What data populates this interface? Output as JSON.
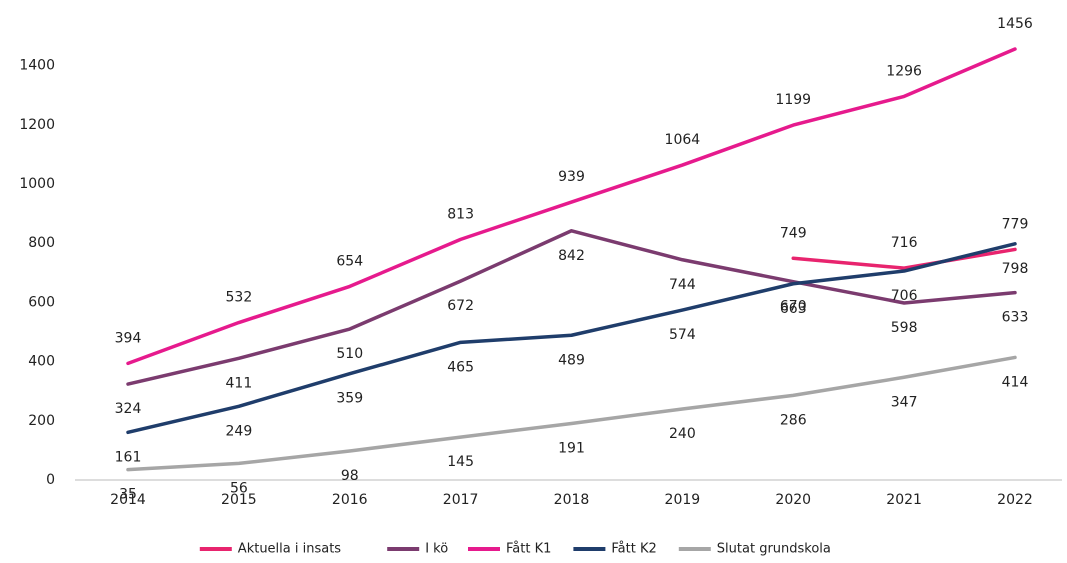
{
  "chart_data": {
    "type": "line",
    "categories": [
      "2014",
      "2015",
      "2016",
      "2017",
      "2018",
      "2019",
      "2020",
      "2021",
      "2022"
    ],
    "series": [
      {
        "name": "Aktuella i insats",
        "color": "#e8246e",
        "values": [
          null,
          null,
          null,
          null,
          null,
          null,
          749,
          716,
          779
        ]
      },
      {
        "name": "I kö",
        "color": "#7b3b6f",
        "values": [
          324,
          411,
          510,
          672,
          842,
          744,
          670,
          598,
          633
        ]
      },
      {
        "name": "Fått K1",
        "color": "#e61a8d",
        "values": [
          394,
          532,
          654,
          813,
          939,
          1064,
          1199,
          1296,
          1456
        ]
      },
      {
        "name": "Fått K2",
        "color": "#1f3d6b",
        "values": [
          161,
          249,
          359,
          465,
          489,
          574,
          663,
          706,
          798
        ]
      },
      {
        "name": "Slutat grundskola",
        "color": "#a6a6a6",
        "values": [
          35,
          56,
          98,
          145,
          191,
          240,
          286,
          347,
          414
        ]
      }
    ],
    "ylim": [
      0,
      1500
    ],
    "yticks": [
      0,
      200,
      400,
      600,
      800,
      1000,
      1200,
      1400
    ],
    "grid": false,
    "legend": "bottom"
  }
}
